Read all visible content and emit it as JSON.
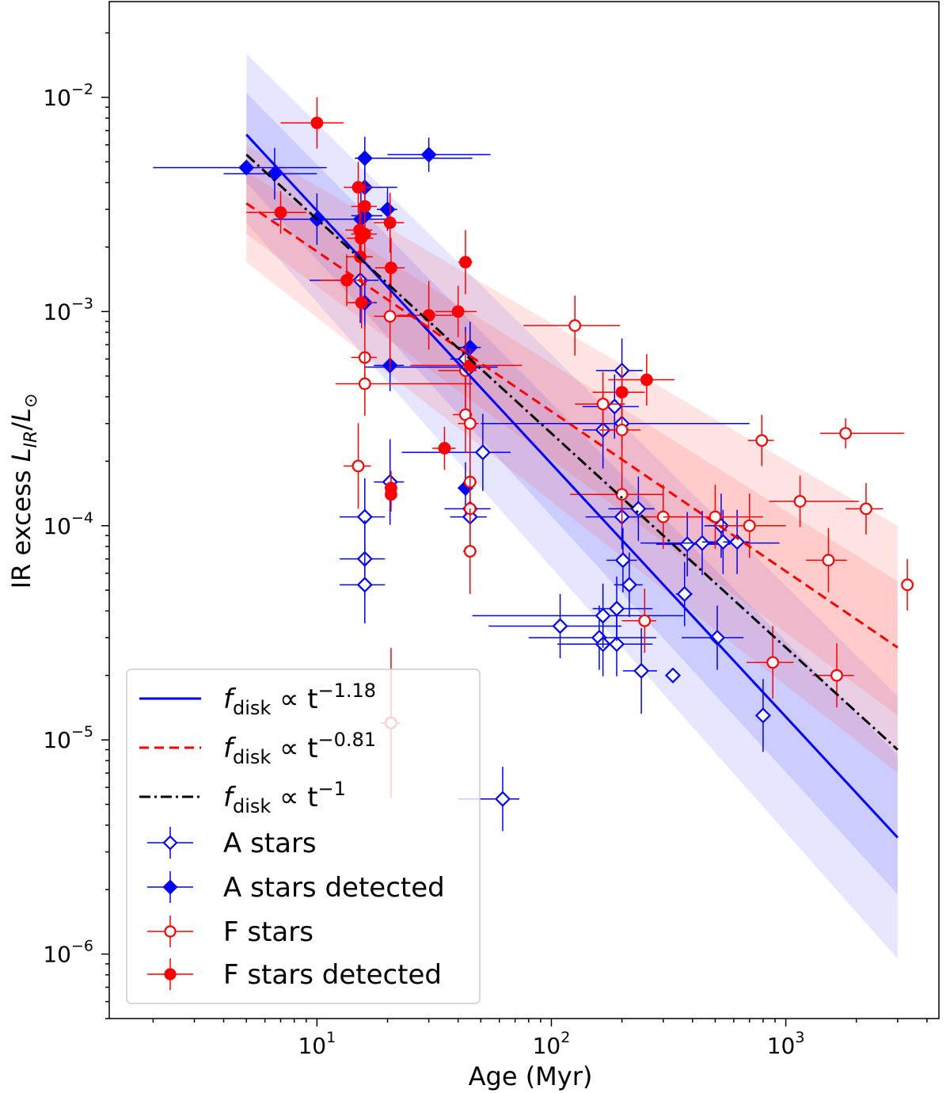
{
  "chart_data": {
    "type": "scatter",
    "title": "",
    "xlabel": "Age (Myr)",
    "ylabel_parts": {
      "prefix": "IR excess ",
      "num": "L",
      "num_sub": "IR",
      "slash": "/",
      "den": "L",
      "den_sub": "⊙"
    },
    "xscale": "log",
    "yscale": "log",
    "xlim": [
      1.3,
      4500
    ],
    "ylim": [
      5e-07,
      0.028
    ],
    "xticks": [
      {
        "base": "10",
        "exp": "1",
        "value": 10
      },
      {
        "base": "10",
        "exp": "2",
        "value": 100
      },
      {
        "base": "10",
        "exp": "3",
        "value": 1000
      }
    ],
    "yticks": [
      {
        "base": "10",
        "exp": "−2",
        "value": 0.01
      },
      {
        "base": "10",
        "exp": "−3",
        "value": 0.001
      },
      {
        "base": "10",
        "exp": "−4",
        "value": 0.0001
      },
      {
        "base": "10",
        "exp": "−5",
        "value": 1e-05
      },
      {
        "base": "10",
        "exp": "−6",
        "value": 1e-06
      }
    ],
    "fits": [
      {
        "name": "fdisk ∝ t^-1.18",
        "label_main": "f",
        "label_sub": "disk",
        "label_mid": " ∝ t",
        "label_exp": "−1.18",
        "color": "#0000ff",
        "dash": "",
        "t0": 5,
        "t1": 3000,
        "y0": 0.0067,
        "y1": 3.5e-06
      },
      {
        "name": "fdisk ∝ t^-0.81",
        "label_main": "f",
        "label_sub": "disk",
        "label_mid": " ∝ t",
        "label_exp": "−0.81",
        "color": "#ff0000",
        "dash": "12,7",
        "t0": 5,
        "t1": 3000,
        "y0": 0.0032,
        "y1": 2.7e-05
      },
      {
        "name": "fdisk ∝ t^-1",
        "label_main": "f",
        "label_sub": "disk",
        "label_mid": " ∝ t",
        "label_exp": "−1",
        "color": "#000000",
        "dash": "14,5,3,5",
        "t0": 5,
        "t1": 3000,
        "y0": 0.0054,
        "y1": 9e-06
      }
    ],
    "bands": [
      {
        "color": "#3a3aff",
        "opacity": 0.13,
        "t0": 5,
        "upper0": 0.016,
        "lower0": 0.0026,
        "t1": 3000,
        "upper1": 1.6e-05,
        "lower1": 9.5e-07
      },
      {
        "color": "#3a3aff",
        "opacity": 0.15,
        "t0": 5,
        "upper0": 0.0105,
        "lower0": 0.004,
        "t1": 3000,
        "upper1": 8.5e-06,
        "lower1": 1.9e-06
      },
      {
        "color": "#ff5a5a",
        "opacity": 0.16,
        "t0": 5,
        "upper0": 0.006,
        "lower0": 0.0017,
        "t1": 3000,
        "upper1": 0.0001,
        "lower1": 7e-06
      },
      {
        "color": "#ff5a5a",
        "opacity": 0.18,
        "t0": 5,
        "upper0": 0.0045,
        "lower0": 0.0023,
        "t1": 3000,
        "upper1": 5.5e-05,
        "lower1": 1.3e-05
      }
    ],
    "series": [
      {
        "name": "A stars",
        "marker": "diamond",
        "filled": false,
        "color": "#0000ff",
        "points": [
          [
            15.3,
            0.0014,
            6,
            3,
            0.2
          ],
          [
            16,
            0.00011,
            3.5,
            3.5,
            0.18
          ],
          [
            16,
            7e-05,
            3.5,
            3.5,
            0.18
          ],
          [
            16,
            5.3e-05,
            3.5,
            3.5,
            0.18
          ],
          [
            20.5,
            0.00016,
            3,
            3,
            0.2
          ],
          [
            43,
            0.0006,
            6,
            5,
            0.15
          ],
          [
            45,
            0.00055,
            29,
            14,
            0.15
          ],
          [
            45,
            0.00012,
            10,
            10,
            0.15
          ],
          [
            45,
            0.00011,
            8,
            8,
            0.15
          ],
          [
            51,
            0.00022,
            28,
            16,
            0.18
          ],
          [
            62,
            5.3e-06,
            22,
            11,
            0.15
          ],
          [
            109,
            3.4e-05,
            55,
            90,
            0.15
          ],
          [
            160,
            3e-05,
            80,
            120,
            0.15
          ],
          [
            166,
            0.00028,
            30,
            30,
            0.18
          ],
          [
            166,
            2.8e-05,
            60,
            100,
            0.15
          ],
          [
            166,
            3.8e-05,
            120,
            200,
            0.15
          ],
          [
            186,
            0.00036,
            50,
            50,
            0.15
          ],
          [
            190,
            2.8e-05,
            40,
            80,
            0.15
          ],
          [
            190,
            4.1e-05,
            40,
            80,
            0.15
          ],
          [
            200,
            0.00053,
            45,
            45,
            0.15
          ],
          [
            200,
            0.0003,
            150,
            500,
            0.12
          ],
          [
            200,
            0.00011,
            60,
            60,
            0.15
          ],
          [
            202,
            6.9e-05,
            30,
            30,
            0.15
          ],
          [
            215,
            5.3e-05,
            30,
            30,
            0.15
          ],
          [
            235,
            0.00012,
            60,
            40,
            0.15
          ],
          [
            242,
            2.1e-05,
            40,
            40,
            0.2
          ],
          [
            330,
            2e-05,
            0,
            0,
            0
          ],
          [
            370,
            4.8e-05,
            30,
            30,
            0.15
          ],
          [
            380,
            8.2e-05,
            100,
            200,
            0.15
          ],
          [
            440,
            8.3e-05,
            200,
            500,
            0.15
          ],
          [
            510,
            3e-05,
            150,
            150,
            0.15
          ],
          [
            530,
            0.0001,
            80,
            80,
            0.15
          ],
          [
            540,
            8.4e-05,
            100,
            100,
            0.15
          ],
          [
            620,
            8.4e-05,
            80,
            80,
            0.15
          ],
          [
            800,
            1.3e-05,
            0,
            0,
            0.17
          ]
        ]
      },
      {
        "name": "A stars detected",
        "marker": "diamond",
        "filled": true,
        "color": "#0000ff",
        "points": [
          [
            5,
            0.0047,
            3,
            6,
            0
          ],
          [
            6.6,
            0.0044,
            2.6,
            3.4,
            0.12
          ],
          [
            10,
            0.0027,
            3.5,
            10,
            0.12
          ],
          [
            15.4,
            0.0027,
            5,
            4,
            0.15
          ],
          [
            16,
            0.0052,
            1.5,
            30,
            0.1
          ],
          [
            16,
            0.0038,
            2,
            6,
            0.12
          ],
          [
            16,
            0.0028,
            2,
            3,
            0.12
          ],
          [
            16,
            0.0011,
            2,
            2,
            0.12
          ],
          [
            20,
            0.003,
            2,
            2,
            0.1
          ],
          [
            20.5,
            0.00056,
            3,
            3,
            0.12
          ],
          [
            30,
            0.0054,
            10,
            25,
            0.08
          ],
          [
            43,
            0.00015,
            3,
            3,
            0.12
          ],
          [
            45,
            0.00068,
            5,
            5,
            0.12
          ]
        ]
      },
      {
        "name": "F stars",
        "marker": "circle",
        "filled": false,
        "color": "#ff0000",
        "points": [
          [
            15,
            0.00019,
            2,
            2,
            0.2
          ],
          [
            16,
            0.00061,
            2,
            2,
            0.15
          ],
          [
            16,
            0.00046,
            4,
            30,
            0.15
          ],
          [
            20.5,
            0.00095,
            3,
            5,
            0.25
          ],
          [
            20.7,
            1.2e-05,
            2,
            2,
            0.35
          ],
          [
            43,
            0.00053,
            10,
            5,
            0.18
          ],
          [
            43,
            0.00033,
            5,
            3,
            0.18
          ],
          [
            45,
            0.0003,
            5,
            4,
            0.18
          ],
          [
            45,
            0.00016,
            3,
            3,
            0.2
          ],
          [
            45,
            0.00012,
            3,
            3,
            0.2
          ],
          [
            45,
            7.6e-05,
            3,
            3,
            0.2
          ],
          [
            126,
            0.00086,
            50,
            70,
            0.14
          ],
          [
            166,
            0.00037,
            40,
            40,
            0.15
          ],
          [
            200,
            0.00028,
            40,
            40,
            0.15
          ],
          [
            200,
            0.00014,
            80,
            100,
            0.15
          ],
          [
            250,
            3.6e-05,
            50,
            30,
            0.15
          ],
          [
            300,
            0.00011,
            60,
            60,
            0.15
          ],
          [
            500,
            0.00011,
            200,
            300,
            0.15
          ],
          [
            700,
            0.0001,
            200,
            300,
            0.15
          ],
          [
            790,
            0.00025,
            100,
            100,
            0.12
          ],
          [
            880,
            2.3e-05,
            200,
            200,
            0.17
          ],
          [
            1150,
            0.00013,
            300,
            900,
            0.12
          ],
          [
            1520,
            6.9e-05,
            300,
            300,
            0.15
          ],
          [
            1650,
            2e-05,
            350,
            300,
            0.15
          ],
          [
            1800,
            0.00027,
            400,
            1400,
            0.07
          ],
          [
            2200,
            0.00012,
            400,
            400,
            0.12
          ],
          [
            3300,
            5.3e-05,
            0,
            0,
            0.12
          ]
        ]
      },
      {
        "name": "F stars detected",
        "marker": "circle",
        "filled": true,
        "color": "#ff0000",
        "points": [
          [
            7,
            0.0029,
            2,
            2,
            0.1
          ],
          [
            10,
            0.0076,
            3,
            3,
            0.12
          ],
          [
            13.4,
            0.0014,
            3,
            3,
            0.12
          ],
          [
            15,
            0.0038,
            2,
            2,
            0.12
          ],
          [
            15.2,
            0.0024,
            2,
            2,
            0.12
          ],
          [
            15.3,
            0.0018,
            2,
            2,
            0.12
          ],
          [
            15.4,
            0.0022,
            2,
            2,
            0.12
          ],
          [
            15.5,
            0.0011,
            2,
            2,
            0.12
          ],
          [
            16,
            0.0031,
            2,
            2,
            0.12
          ],
          [
            16,
            0.0023,
            2,
            2,
            0.12
          ],
          [
            20.5,
            0.0026,
            3,
            3,
            0.14
          ],
          [
            20.7,
            0.0016,
            3,
            3,
            0.14
          ],
          [
            20.7,
            0.00015,
            1,
            1,
            0.08
          ],
          [
            20.7,
            0.00014,
            1,
            1,
            0.08
          ],
          [
            30,
            0.00096,
            8,
            8,
            0.16
          ],
          [
            35,
            0.00023,
            4,
            4,
            0.1
          ],
          [
            40,
            0.001,
            8,
            8,
            0.12
          ],
          [
            43,
            0.0017,
            3,
            3,
            0.15
          ],
          [
            45,
            0.00056,
            20,
            30,
            0.08
          ],
          [
            200,
            0.00042,
            50,
            50,
            0.12
          ],
          [
            255,
            0.00048,
            80,
            80,
            0.12
          ]
        ]
      }
    ],
    "legend_placement": "bottom-left"
  }
}
